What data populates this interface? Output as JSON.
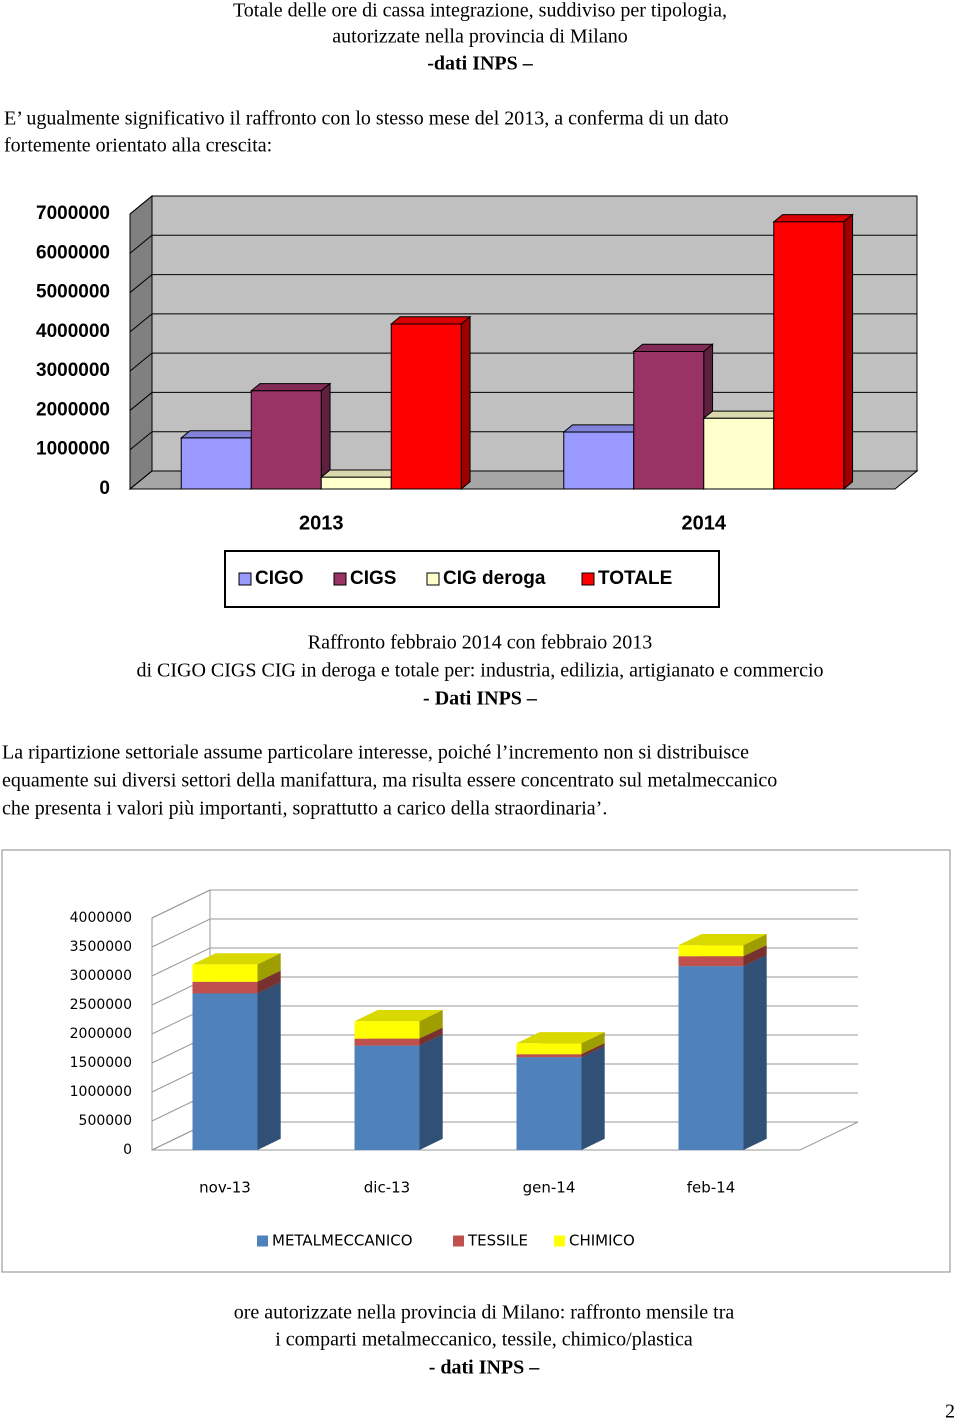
{
  "header": [
    "Totale delle ore di cassa integrazione, suddiviso per tipologia,",
    "autorizzate nella provincia di Milano",
    "-dati INPS –"
  ],
  "intro": [
    "E’ ugualmente significativo il raffronto con lo stesso mese del 2013,  a conferma di un dato",
    "fortemente orientato alla crescita:"
  ],
  "caption1": [
    "Raffronto febbraio  2014 con febbraio  2013",
    "di CIGO CIGS  CIG in deroga e totale per: industria, edilizia, artigianato e commercio",
    "- Dati INPS –"
  ],
  "paragraph": [
    "La ripartizione settoriale assume particolare interesse, poiché l’incremento non si distribuisce",
    "equamente sui diversi settori della manifattura, ma risulta essere concentrato sul metalmeccanico",
    "che presenta i valori più importanti, soprattutto a carico della   straordinaria’."
  ],
  "caption2": [
    "ore autorizzate nella provincia di Milano: raffronto mensile tra",
    "i comparti metalmeccanico, tessile, chimico/plastica",
    "- dati INPS –"
  ],
  "page_number": "2",
  "chart_data": [
    {
      "type": "bar",
      "categories": [
        "2013",
        "2014"
      ],
      "series": [
        {
          "name": "CIGO",
          "color": "#9999ff",
          "values": [
            1300000,
            1450000
          ]
        },
        {
          "name": "CIGS",
          "color": "#993366",
          "values": [
            2500000,
            3500000
          ]
        },
        {
          "name": "CIG deroga",
          "color": "#ffffcc",
          "values": [
            300000,
            1800000
          ]
        },
        {
          "name": "TOTALE",
          "color": "#ff0000",
          "values": [
            4200000,
            6800000
          ]
        }
      ],
      "ylim": [
        0,
        7000000
      ],
      "yticks": [
        0,
        1000000,
        2000000,
        3000000,
        4000000,
        5000000,
        6000000,
        7000000
      ],
      "grid": true,
      "legend": "bottom"
    },
    {
      "type": "stacked_bar",
      "categories": [
        "nov-13",
        "dic-13",
        "gen-14",
        "feb-14"
      ],
      "series": [
        {
          "name": "METALMECCANICO",
          "color": "#4f81bd",
          "values": [
            2700000,
            1800000,
            1600000,
            3170000
          ]
        },
        {
          "name": "TESSILE",
          "color": "#c0504d",
          "values": [
            200000,
            120000,
            50000,
            170000
          ]
        },
        {
          "name": "CHIMICO",
          "color": "#ffff00",
          "values": [
            300000,
            300000,
            190000,
            190000
          ]
        }
      ],
      "ylim": [
        0,
        4000000
      ],
      "yticks": [
        0,
        500000,
        1000000,
        1500000,
        2000000,
        2500000,
        3000000,
        3500000,
        4000000
      ],
      "grid": true,
      "legend": "bottom"
    }
  ]
}
